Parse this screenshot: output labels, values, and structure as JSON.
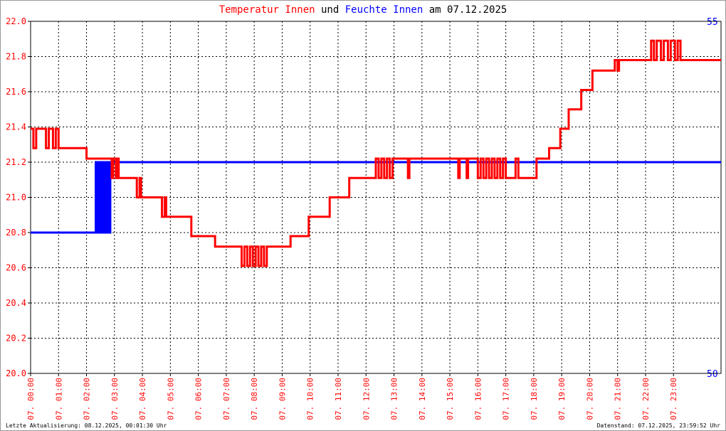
{
  "chart_data": {
    "type": "line",
    "title_joiner": "und",
    "title_suffix": "am 07.12.2025",
    "xlim": [
      0,
      24.7
    ],
    "xticks": [
      {
        "value": 0,
        "label": "07. 00:00"
      },
      {
        "value": 1,
        "label": "07. 01:00"
      },
      {
        "value": 2,
        "label": "07. 02:00"
      },
      {
        "value": 3,
        "label": "07. 03:00"
      },
      {
        "value": 4,
        "label": "07. 04:00"
      },
      {
        "value": 5,
        "label": "07. 05:00"
      },
      {
        "value": 6,
        "label": "07. 06:00"
      },
      {
        "value": 7,
        "label": "07. 07:00"
      },
      {
        "value": 8,
        "label": "07. 08:00"
      },
      {
        "value": 9,
        "label": "07. 09:00"
      },
      {
        "value": 10,
        "label": "07. 10:00"
      },
      {
        "value": 11,
        "label": "07. 11:00"
      },
      {
        "value": 12,
        "label": "07. 12:00"
      },
      {
        "value": 13,
        "label": "07. 13:00"
      },
      {
        "value": 14,
        "label": "07. 14:00"
      },
      {
        "value": 15,
        "label": "07. 15:00"
      },
      {
        "value": 16,
        "label": "07. 16:00"
      },
      {
        "value": 17,
        "label": "07. 17:00"
      },
      {
        "value": 18,
        "label": "07. 18:00"
      },
      {
        "value": 19,
        "label": "07. 19:00"
      },
      {
        "value": 20,
        "label": "07. 20:00"
      },
      {
        "value": 21,
        "label": "07. 21:00"
      },
      {
        "value": 22,
        "label": "07. 22:00"
      },
      {
        "value": 23,
        "label": "07. 23:00"
      }
    ],
    "ylim": [
      20.0,
      22.0
    ],
    "yticks": [
      {
        "value": 20.0,
        "label": "20.0"
      },
      {
        "value": 20.2,
        "label": "20.2"
      },
      {
        "value": 20.4,
        "label": "20.4"
      },
      {
        "value": 20.6,
        "label": "20.6"
      },
      {
        "value": 20.8,
        "label": "20.8"
      },
      {
        "value": 21.0,
        "label": "21.0"
      },
      {
        "value": 21.2,
        "label": "21.2"
      },
      {
        "value": 21.4,
        "label": "21.4"
      },
      {
        "value": 21.6,
        "label": "21.6"
      },
      {
        "value": 21.8,
        "label": "21.8"
      },
      {
        "value": 22.0,
        "label": "22.0"
      }
    ],
    "y2lim": [
      50,
      55
    ],
    "y2ticks": [
      50,
      55
    ],
    "grid": true,
    "step": true,
    "series": [
      {
        "name": "Temperatur Innen",
        "color": "#ff0000",
        "x": [
          0,
          0.1,
          0.2,
          0.55,
          0.65,
          0.8,
          0.9,
          1.0,
          2.0,
          2.9,
          2.95,
          3.05,
          3.1,
          3.15,
          3.8,
          3.9,
          3.95,
          4.7,
          4.8,
          4.85,
          5.75,
          6.6,
          7.55,
          7.65,
          7.75,
          7.85,
          7.95,
          8.05,
          8.15,
          8.25,
          8.35,
          8.45,
          9.3,
          9.95,
          10.7,
          11.4,
          12.35,
          12.45,
          12.55,
          12.65,
          12.75,
          12.85,
          12.95,
          13.5,
          13.55,
          15.3,
          15.35,
          15.6,
          15.65,
          16.0,
          16.1,
          16.2,
          16.3,
          16.4,
          16.5,
          16.6,
          16.7,
          16.8,
          16.9,
          17.0,
          17.35,
          17.45,
          18.1,
          18.55,
          18.95,
          19.25,
          19.7,
          20.1,
          20.9,
          21.0,
          21.05,
          22.2,
          22.3,
          22.4,
          22.55,
          22.65,
          22.8,
          22.9,
          23.05,
          23.15,
          23.25,
          24.7
        ],
        "values": [
          21.39,
          21.28,
          21.39,
          21.28,
          21.39,
          21.28,
          21.39,
          21.28,
          21.22,
          21.11,
          21.22,
          21.11,
          21.22,
          21.11,
          21.0,
          21.11,
          21.0,
          20.89,
          21.0,
          20.89,
          20.78,
          20.72,
          20.61,
          20.72,
          20.61,
          20.72,
          20.61,
          20.72,
          20.61,
          20.72,
          20.61,
          20.72,
          20.78,
          20.89,
          21.0,
          21.11,
          21.22,
          21.11,
          21.22,
          21.11,
          21.22,
          21.11,
          21.22,
          21.11,
          21.22,
          21.11,
          21.22,
          21.11,
          21.22,
          21.11,
          21.22,
          21.11,
          21.22,
          21.11,
          21.22,
          21.11,
          21.22,
          21.11,
          21.22,
          21.11,
          21.22,
          21.11,
          21.22,
          21.28,
          21.39,
          21.5,
          21.61,
          21.72,
          21.78,
          21.72,
          21.78,
          21.89,
          21.78,
          21.89,
          21.78,
          21.89,
          21.78,
          21.89,
          21.78,
          21.89,
          21.78,
          21.78
        ]
      },
      {
        "name": "Feuchte Innen",
        "color": "#0000ff",
        "axis": "y2",
        "x": [
          0,
          2.33,
          2.4,
          2.45,
          2.5,
          2.55,
          2.6,
          2.65,
          2.7,
          2.75,
          2.8,
          2.85,
          24.7
        ],
        "values": [
          52,
          53,
          52,
          53,
          52,
          53,
          52,
          53,
          52,
          53,
          52,
          53,
          53
        ]
      }
    ],
    "footer_left": "Letzte Aktualisierung: 08.12.2025, 00:01:30 Uhr",
    "footer_right": "Datenstand: 07.12.2025, 23:59:52 Uhr"
  }
}
